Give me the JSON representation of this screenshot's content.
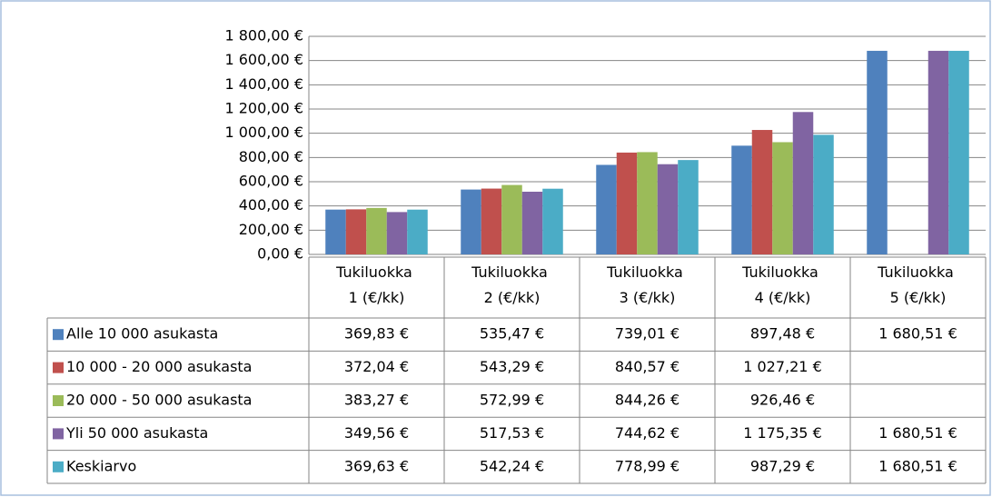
{
  "chart_data": {
    "type": "bar",
    "categories": [
      "Tukiluokka 1 (€/kk)",
      "Tukiluokka 2  (€/kk)",
      "Tukiluokka 3  (€/kk)",
      "Tukiluokka 4  (€/kk)",
      "Tukiluokka 5 (€/kk)"
    ],
    "series": [
      {
        "name": "Alle 10 000 asukasta",
        "color": "#4f81bd",
        "values": [
          369.83,
          535.47,
          739.01,
          897.48,
          1680.51
        ],
        "value_labels": [
          "369,83 €",
          "535,47 €",
          "739,01 €",
          "897,48 €",
          "1 680,51 €"
        ]
      },
      {
        "name": "10 000 - 20 000 asukasta",
        "color": "#c0504d",
        "values": [
          372.04,
          543.29,
          840.57,
          1027.21,
          null
        ],
        "value_labels": [
          "372,04 €",
          "543,29 €",
          "840,57 €",
          "1 027,21 €",
          null
        ]
      },
      {
        "name": "20 000 - 50 000 asukasta",
        "color": "#9bbb59",
        "values": [
          383.27,
          572.99,
          844.26,
          926.46,
          null
        ],
        "value_labels": [
          "383,27 €",
          "572,99 €",
          "844,26 €",
          "926,46 €",
          null
        ]
      },
      {
        "name": "Yli 50 000 asukasta",
        "color": "#8064a2",
        "values": [
          349.56,
          517.53,
          744.62,
          1175.35,
          1680.51
        ],
        "value_labels": [
          "349,56 €",
          "517,53 €",
          "744,62 €",
          "1 175,35 €",
          "1 680,51 €"
        ]
      },
      {
        "name": "Keskiarvo",
        "color": "#4bacc6",
        "values": [
          369.63,
          542.24,
          778.99,
          987.29,
          1680.51
        ],
        "value_labels": [
          "369,63 €",
          "542,24 €",
          "778,99 €",
          "987,29 €",
          "1 680,51 €"
        ]
      }
    ],
    "ylim": [
      0,
      1800
    ],
    "yticks": [
      {
        "value": 0,
        "label": "0,00 €"
      },
      {
        "value": 200,
        "label": "200,00 €"
      },
      {
        "value": 400,
        "label": "400,00 €"
      },
      {
        "value": 600,
        "label": "600,00 €"
      },
      {
        "value": 800,
        "label": "800,00 €"
      },
      {
        "value": 1000,
        "label": "1 000,00 €"
      },
      {
        "value": 1200,
        "label": "1 200,00 €"
      },
      {
        "value": 1400,
        "label": "1 400,00 €"
      },
      {
        "value": 1600,
        "label": "1 600,00 €"
      },
      {
        "value": 1800,
        "label": "1 800,00 €"
      }
    ],
    "grid": true
  }
}
